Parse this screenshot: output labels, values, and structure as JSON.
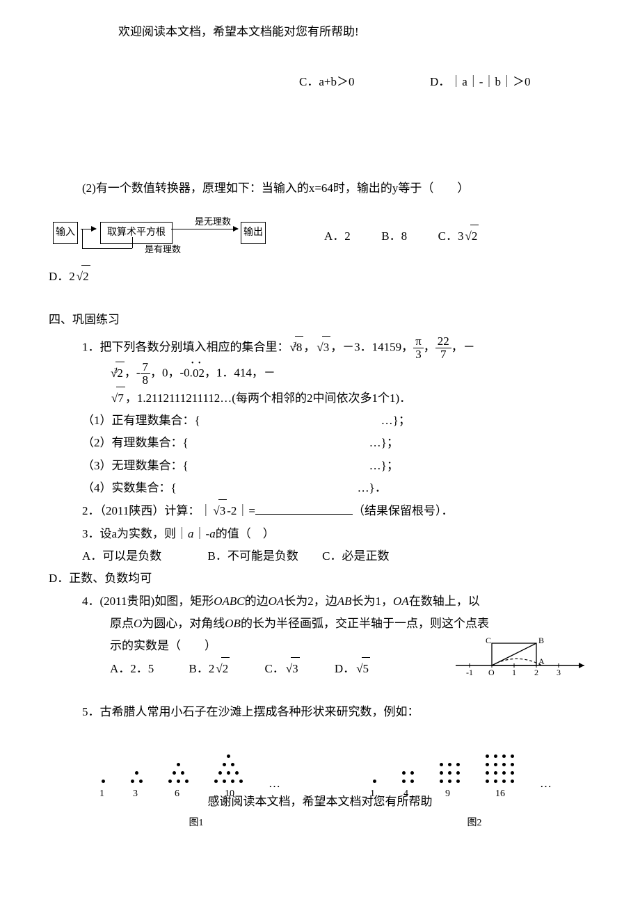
{
  "header": "欢迎阅读本文档，希望本文档能对您有所帮助!",
  "footer": "感谢阅读本文档，希望本文档对您有所帮助",
  "cd": {
    "c": "C．a+b＞0",
    "d": "D．｜a｜-｜b｜＞0"
  },
  "q2": {
    "stem": "(2)有一个数值转换器，原理如下：当输入的x=64时，输出的y等于（　　）",
    "flow": {
      "in": "输入",
      "op": "取算术平方根",
      "irr": "是无理数",
      "rat": "是有理数",
      "out": "输出"
    },
    "opts": {
      "a": "A．2",
      "b": "B．8",
      "c_pre": "C．3",
      "d_pre": "D．2",
      "sqrt2": "2"
    }
  },
  "sec4": {
    "title": "四、巩固练习",
    "p1": {
      "lead": "1．把下列各数分别填入相应的集合里：",
      "cbrt8": "8",
      "sqrt3": "3",
      "neg": "，－3．14159，",
      "frac_pi": {
        "n": "π",
        "d": "3"
      },
      "frac_22_7": {
        "n": "22",
        "d": "7"
      },
      "tail1": "，－",
      "cbrt2": "2",
      "frac_7_8": {
        "n": "7",
        "d": "8"
      },
      "mid": "，0，-0.",
      "rep": "02",
      "after": "，1．414，－",
      "sqrt7": "7",
      "seq": "，1.2112111211112…(每两个相邻的2中间依次多1个1)．",
      "s1": "（1）正有理数集合：{",
      "s2": "（2）有理数集合：{",
      "s3": "（3）无理数集合：{",
      "s4": "（4）实数集合：{",
      "e1": "…}；",
      "e2": "…}；",
      "e3": "…}；",
      "e4": "…}．"
    },
    "p2": {
      "lead": "2．（2011陕西）计算：｜",
      "sqrt3": "3",
      "mid": "-2｜=",
      "tail": "（结果保留根号）．"
    },
    "p3": {
      "stem": "3．设a为实数，则｜",
      "avar": "a",
      "mid": "｜-",
      "avar2": "a",
      "tail": "的值（　）",
      "a": "A．可以是负数",
      "b": "B．不可能是负数",
      "c": "C．必是正数",
      "d": "D．正数、负数均可"
    },
    "p4": {
      "l1a": "4．(2011贵阳)如图，矩形",
      "oabc": "OABC",
      "l1b": "的边",
      "oa": "OA",
      "l1c": "长为2，边",
      "ab": "AB",
      "l1d": "长为1，",
      "oa2": "OA",
      "l1e": "在数轴上，以",
      "l2a": "原点",
      "o": "O",
      "l2b": "为圆心，对角线",
      "ob": "OB",
      "l2c": "的长为半径画弧，交正半轴于一点，则这个点表",
      "l3": "示的实数是（　　）",
      "a": "A．2．5",
      "b_pre": "B．2",
      "sqrt2": "2",
      "c_pre": "C．",
      "sqrt3": "3",
      "d_pre": "D．",
      "sqrt5": "5",
      "axis": {
        "labels": [
          "-1",
          "O",
          "1",
          "2",
          "3"
        ],
        "C": "C",
        "B": "B",
        "A": "A"
      }
    },
    "p5": {
      "stem": "5．古希腊人常用小石子在沙滩上摆成各种形状来研究数，例如：",
      "tri_labels": [
        "1",
        "3",
        "6",
        "10",
        "…"
      ],
      "sq_labels": [
        "1",
        "4",
        "9",
        "16",
        "…"
      ],
      "cap1": "图1",
      "cap2": "图2"
    }
  },
  "colors": {
    "ink": "#000000",
    "bg": "#ffffff"
  }
}
